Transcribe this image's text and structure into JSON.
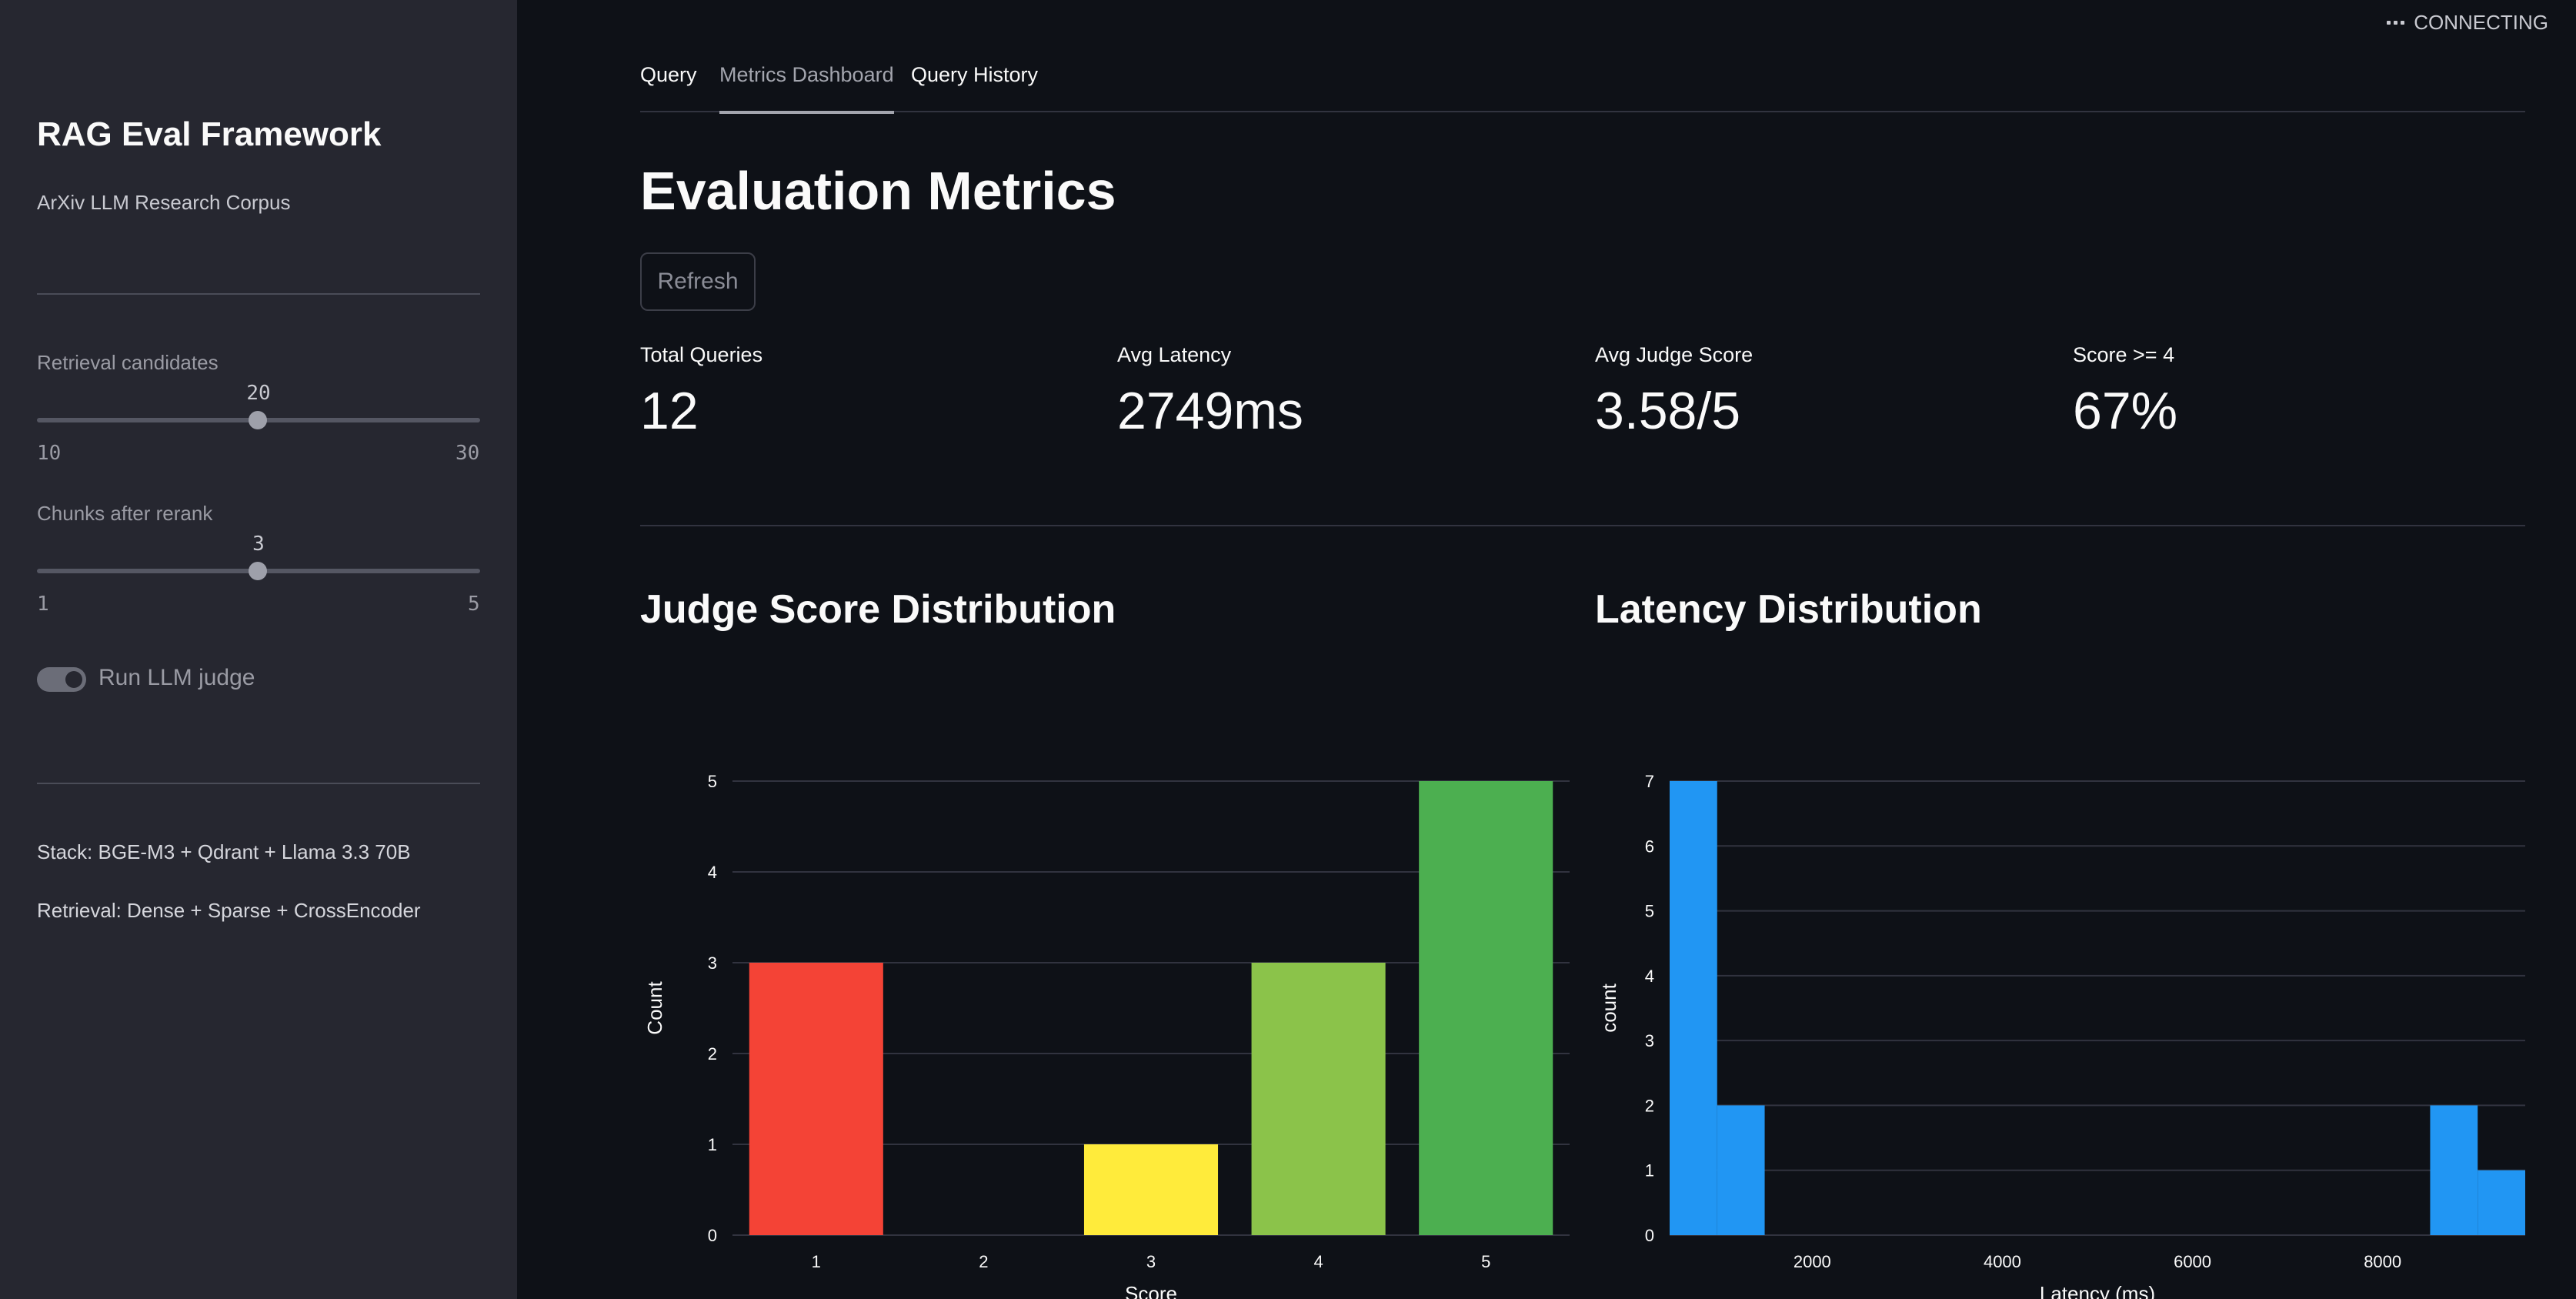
{
  "sidebar": {
    "title": "RAG Eval Framework",
    "subtitle": "ArXiv LLM Research Corpus",
    "retrieval_slider": {
      "label": "Retrieval candidates",
      "value": "20",
      "min": "10",
      "max": "30",
      "fraction": 0.5
    },
    "rerank_slider": {
      "label": "Chunks after rerank",
      "value": "3",
      "min": "1",
      "max": "5",
      "fraction": 0.5
    },
    "judge_toggle": {
      "label": "Run LLM judge",
      "on": true
    },
    "stack_text": "Stack: BGE-M3 + Qdrant + Llama 3.3 70B",
    "retrieval_text": "Retrieval: Dense + Sparse + CrossEncoder"
  },
  "status": {
    "label": "CONNECTING"
  },
  "tabs": [
    {
      "label": "Query",
      "active": false
    },
    {
      "label": "Metrics Dashboard",
      "active": true
    },
    {
      "label": "Query History",
      "active": false
    }
  ],
  "main": {
    "title": "Evaluation Metrics",
    "refresh_label": "Refresh",
    "metrics": [
      {
        "label": "Total Queries",
        "value": "12"
      },
      {
        "label": "Avg Latency",
        "value": "2749ms"
      },
      {
        "label": "Avg Judge Score",
        "value": "3.58/5"
      },
      {
        "label": "Score >= 4",
        "value": "67%"
      }
    ]
  },
  "chart_data": [
    {
      "type": "bar",
      "title": "Judge Score Distribution",
      "xlabel": "Score",
      "ylabel": "Count",
      "categories": [
        "1",
        "2",
        "3",
        "4",
        "5"
      ],
      "values": [
        3,
        0,
        1,
        3,
        5
      ],
      "colors": [
        "#f44336",
        "#ff9800",
        "#ffeb3b",
        "#8bc34a",
        "#4caf50"
      ],
      "ylim": [
        0,
        5
      ],
      "yticks": [
        0,
        1,
        2,
        3,
        4,
        5
      ],
      "grid": true
    },
    {
      "type": "bar",
      "title": "Latency Distribution",
      "xlabel": "Latency (ms)",
      "ylabel": "count",
      "bins": [
        {
          "x0": 500,
          "x1": 1000,
          "count": 7
        },
        {
          "x0": 1000,
          "x1": 1500,
          "count": 2
        },
        {
          "x0": 8500,
          "x1": 9000,
          "count": 2
        },
        {
          "x0": 9000,
          "x1": 9500,
          "count": 1
        }
      ],
      "xlim": [
        500,
        9500
      ],
      "xticks": [
        2000,
        4000,
        6000,
        8000
      ],
      "ylim": [
        0,
        7
      ],
      "yticks": [
        0,
        1,
        2,
        3,
        4,
        5,
        6,
        7
      ],
      "color": "#2196f3",
      "grid": true
    }
  ]
}
